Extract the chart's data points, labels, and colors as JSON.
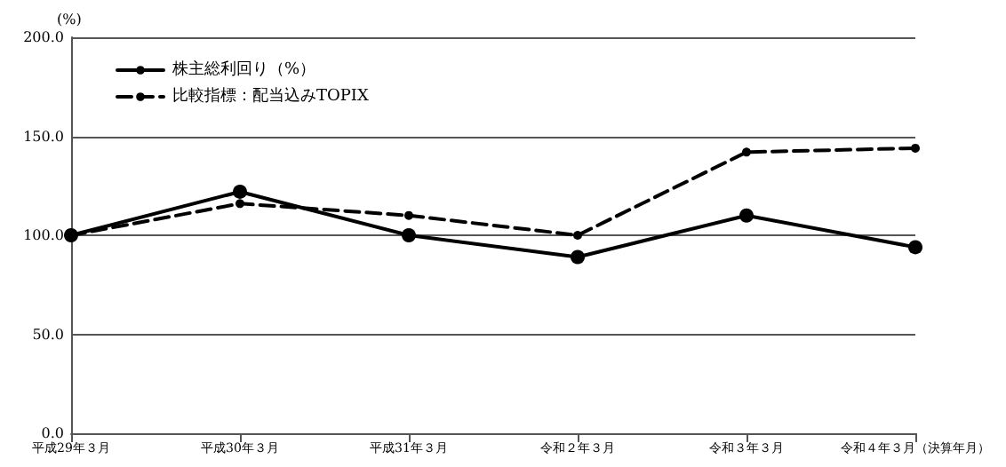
{
  "chart_data": {
    "type": "line",
    "ylabel": "(%)",
    "categories": [
      "平成29年３月",
      "平成30年３月",
      "平成31年３月",
      "令和２年３月",
      "令和３年３月",
      "令和４年３月（決算年月）"
    ],
    "series": [
      {
        "name": "株主総利回り（%）",
        "color": "#000000",
        "line_style": "solid",
        "values": [
          100,
          122,
          100,
          89,
          110,
          94
        ]
      },
      {
        "name": "比較指標：配当込みTOPIX",
        "color": "#000000",
        "line_style": "dashed",
        "values": [
          100,
          116,
          110,
          100,
          142,
          144
        ]
      }
    ],
    "ylim": [
      0,
      200
    ],
    "yticks": [
      {
        "value": 0,
        "label": "0.0"
      },
      {
        "value": 50,
        "label": "50.0"
      },
      {
        "value": 100,
        "label": "100.0"
      },
      {
        "value": 150,
        "label": "150.0"
      },
      {
        "value": 200,
        "label": "200.0"
      }
    ],
    "grid": "y",
    "legend": "top left",
    "marker": "circle"
  }
}
